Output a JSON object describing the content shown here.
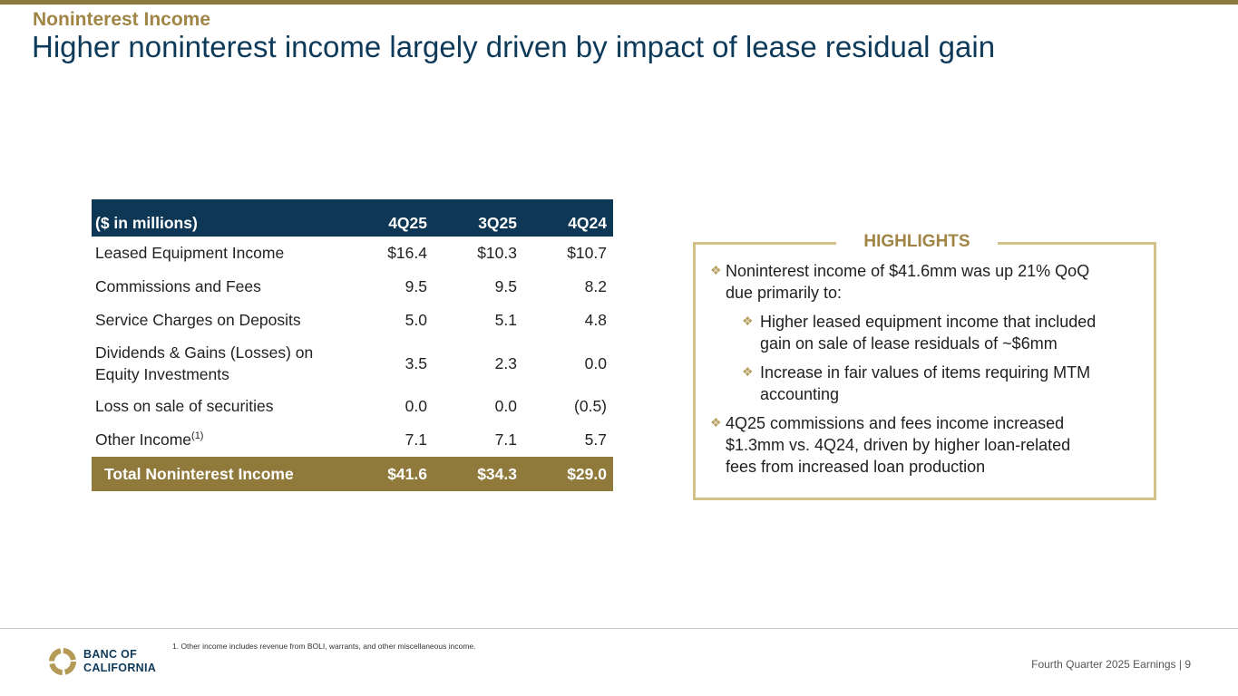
{
  "header": {
    "kicker": "Noninterest Income",
    "title": "Higher noninterest income largely driven by impact of lease residual gain"
  },
  "table": {
    "columns": [
      "($ in millions)",
      "4Q25",
      "3Q25",
      "4Q24"
    ],
    "rows": [
      {
        "label": "Leased Equipment Income",
        "values": [
          "$16.4",
          "$10.3",
          "$10.7"
        ]
      },
      {
        "label": "Commissions and Fees",
        "values": [
          "9.5",
          "9.5",
          "8.2"
        ]
      },
      {
        "label": "Service Charges on Deposits",
        "values": [
          "5.0",
          "5.1",
          "4.8"
        ]
      },
      {
        "label_line1": "Dividends & Gains (Losses) on",
        "label_line2": "Equity Investments",
        "values": [
          "3.5",
          "2.3",
          "0.0"
        ]
      },
      {
        "label": "Loss on sale of securities",
        "values": [
          "0.0",
          "0.0",
          "(0.5)"
        ]
      },
      {
        "label": "Other Income",
        "footnote_ref": "(1)",
        "values": [
          "7.1",
          "7.1",
          "5.7"
        ]
      }
    ],
    "total": {
      "label": "Total Noninterest Income",
      "values": [
        "$41.6",
        "$34.3",
        "$29.0"
      ]
    }
  },
  "highlights": {
    "title": "HIGHLIGHTS",
    "bullet1": [
      "Noninterest income of $41.6mm was up 21% QoQ",
      "due primarily to:"
    ],
    "sub1": [
      "Higher leased equipment income that included",
      "gain on sale of lease residuals of ~$6mm"
    ],
    "sub2": [
      "Increase in fair values of items requiring MTM",
      "accounting"
    ],
    "bullet2": [
      "4Q25 commissions and fees income increased",
      "$1.3mm vs. 4Q24, driven by higher loan-related",
      "fees from increased loan production"
    ]
  },
  "footer": {
    "footnote": "1.  Other income includes revenue from BOLI, warrants, and other miscellaneous income.",
    "logo_line1": "BANC OF",
    "logo_line2": "CALIFORNIA",
    "page_label": "Fourth Quarter 2025 Earnings |  9"
  },
  "colors": {
    "navy": "#0d3754",
    "gold": "#8f7a3c",
    "gold_light": "#d2c28a"
  }
}
